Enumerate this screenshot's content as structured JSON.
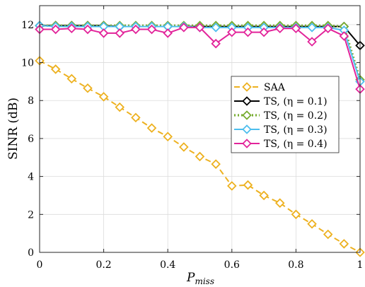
{
  "chart_data": {
    "type": "line",
    "xlabel": "P",
    "xlabel_sub": "miss",
    "ylabel": "SINR (dB)",
    "xlim": [
      0,
      1
    ],
    "ylim": [
      0,
      13
    ],
    "xticks": [
      0,
      0.2,
      0.4,
      0.6,
      0.8,
      1
    ],
    "xtick_labels": [
      "0",
      "0.2",
      "0.4",
      "0.6",
      "0.8",
      "1"
    ],
    "yticks": [
      0,
      2,
      4,
      6,
      8,
      10,
      12
    ],
    "ytick_labels": [
      "0",
      "2",
      "4",
      "6",
      "8",
      "10",
      "12"
    ],
    "grid": true,
    "legend_position": "center-right",
    "x": [
      0,
      0.05,
      0.1,
      0.15,
      0.2,
      0.25,
      0.3,
      0.35,
      0.4,
      0.45,
      0.5,
      0.55,
      0.6,
      0.65,
      0.7,
      0.75,
      0.8,
      0.85,
      0.9,
      0.95,
      1
    ],
    "series": [
      {
        "name": "SAA",
        "color": "#EDB120",
        "dash": "dashed",
        "marker": "diamond",
        "values": [
          10.1,
          9.65,
          9.15,
          8.65,
          8.2,
          7.65,
          7.1,
          6.55,
          6.1,
          5.55,
          5.05,
          4.65,
          3.5,
          3.55,
          3.0,
          2.6,
          2.0,
          1.5,
          0.95,
          0.45,
          0.0
        ]
      },
      {
        "name": "TS, (η = 0.1)",
        "color": "#000000",
        "dash": "solid",
        "marker": "diamond",
        "values": [
          11.95,
          11.95,
          11.95,
          11.95,
          11.95,
          11.9,
          11.9,
          11.9,
          11.9,
          11.9,
          11.9,
          11.9,
          11.9,
          11.9,
          11.9,
          11.9,
          11.9,
          11.9,
          11.9,
          11.9,
          10.9
        ]
      },
      {
        "name": "TS, (η = 0.2)",
        "color": "#77AC30",
        "dash": "dotted",
        "marker": "diamond",
        "values": [
          11.95,
          11.95,
          11.95,
          11.95,
          11.95,
          11.95,
          11.95,
          11.95,
          11.95,
          11.95,
          11.95,
          11.95,
          11.95,
          11.95,
          11.95,
          11.95,
          11.95,
          11.95,
          11.95,
          11.9,
          9.1
        ]
      },
      {
        "name": "TS, (η = 0.3)",
        "color": "#4DBEEE",
        "dash": "solid",
        "marker": "diamond",
        "values": [
          11.95,
          11.9,
          11.9,
          11.9,
          11.9,
          11.9,
          11.9,
          11.9,
          11.9,
          11.9,
          11.85,
          11.85,
          11.85,
          11.85,
          11.85,
          11.85,
          11.85,
          11.85,
          11.85,
          11.7,
          9.0
        ]
      },
      {
        "name": "TS, (η = 0.4)",
        "color": "#E2249A",
        "dash": "solid",
        "marker": "diamond",
        "values": [
          11.75,
          11.75,
          11.8,
          11.75,
          11.55,
          11.55,
          11.75,
          11.75,
          11.55,
          11.85,
          11.85,
          11.0,
          11.6,
          11.6,
          11.6,
          11.8,
          11.8,
          11.1,
          11.8,
          11.4,
          8.6
        ]
      }
    ]
  }
}
